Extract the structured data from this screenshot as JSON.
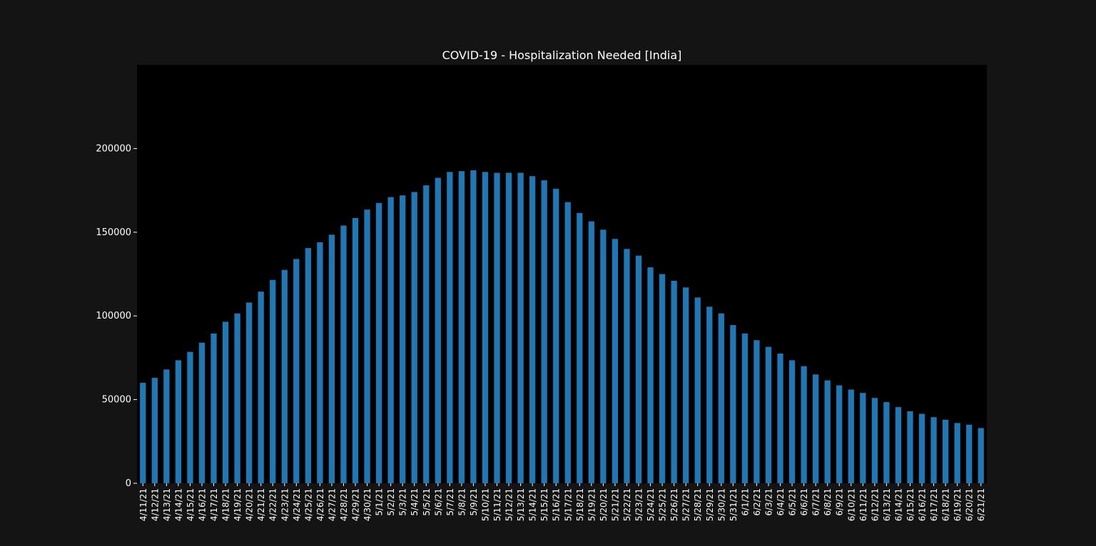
{
  "chart_data": {
    "type": "bar",
    "title": "COVID-19 - Hospitalization Needed [India]",
    "xlabel": "",
    "ylabel": "",
    "ylim": [
      0,
      250000
    ],
    "yticks": [
      "0",
      "50000",
      "100000",
      "150000",
      "200000"
    ],
    "grid": false,
    "legend": "none",
    "colors": {
      "figure_background": "#141414",
      "plot_background": "#000000",
      "bar": "#1f77b4",
      "text": "#ffffff"
    },
    "categories": [
      "4/11/21",
      "4/12/21",
      "4/13/21",
      "4/14/21",
      "4/15/21",
      "4/16/21",
      "4/17/21",
      "4/18/21",
      "4/19/21",
      "4/20/21",
      "4/21/21",
      "4/22/21",
      "4/23/21",
      "4/24/21",
      "4/25/21",
      "4/26/21",
      "4/27/21",
      "4/28/21",
      "4/29/21",
      "4/30/21",
      "5/1/21",
      "5/2/21",
      "5/3/21",
      "5/4/21",
      "5/5/21",
      "5/6/21",
      "5/7/21",
      "5/8/21",
      "5/9/21",
      "5/10/21",
      "5/11/21",
      "5/12/21",
      "5/13/21",
      "5/14/21",
      "5/15/21",
      "5/16/21",
      "5/17/21",
      "5/18/21",
      "5/19/21",
      "5/20/21",
      "5/21/21",
      "5/22/21",
      "5/23/21",
      "5/24/21",
      "5/25/21",
      "5/26/21",
      "5/27/21",
      "5/28/21",
      "5/29/21",
      "5/30/21",
      "5/31/21",
      "6/1/21",
      "6/2/21",
      "6/3/21",
      "6/4/21",
      "6/5/21",
      "6/6/21",
      "6/7/21",
      "6/8/21",
      "6/9/21",
      "6/10/21",
      "6/11/21",
      "6/12/21",
      "6/13/21",
      "6/14/21",
      "6/15/21",
      "6/16/21",
      "6/17/21",
      "6/18/21",
      "6/19/21",
      "6/20/21",
      "6/21/21"
    ],
    "values": [
      60000,
      63000,
      68000,
      73500,
      78500,
      84000,
      89500,
      96500,
      101500,
      108000,
      114500,
      121500,
      127500,
      134000,
      140500,
      144000,
      148500,
      154000,
      158500,
      163500,
      167500,
      171000,
      172000,
      174000,
      178000,
      182500,
      186000,
      186500,
      187000,
      186000,
      185500,
      185500,
      185500,
      183500,
      181000,
      176000,
      168000,
      161500,
      156500,
      151500,
      146000,
      140000,
      136000,
      129000,
      125000,
      121000,
      117000,
      111000,
      105500,
      101500,
      94500,
      89500,
      85500,
      81500,
      77500,
      73500,
      70000,
      65000,
      61500,
      58500,
      56000,
      54000,
      51000,
      48500,
      45500,
      43000,
      41500,
      39500,
      38000,
      36000,
      35000,
      33000
    ]
  }
}
